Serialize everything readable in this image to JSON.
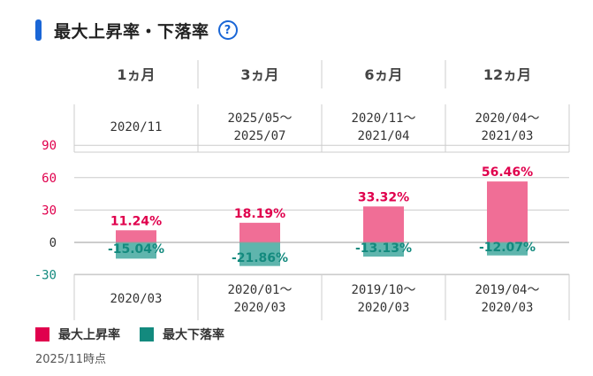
{
  "header": {
    "title": "最大上昇率・下落率",
    "help_glyph": "?",
    "help_icon": "question-circle-icon",
    "accent": "#1a66d6"
  },
  "periods": [
    "1ヵ月",
    "3ヵ月",
    "6ヵ月",
    "12ヵ月"
  ],
  "up_dates": [
    [
      "2020/11"
    ],
    [
      "2025/05〜",
      "2025/07"
    ],
    [
      "2020/11〜",
      "2021/04"
    ],
    [
      "2020/04〜",
      "2021/03"
    ]
  ],
  "down_dates": [
    [
      "2020/03"
    ],
    [
      "2020/01〜",
      "2020/03"
    ],
    [
      "2019/10〜",
      "2020/03"
    ],
    [
      "2019/04〜",
      "2020/03"
    ]
  ],
  "legend": {
    "up": "最大上昇率",
    "down": "最大下落率"
  },
  "footnote": "2025/11時点",
  "colors": {
    "up_bar": "#f06e96",
    "up_label": "#e0004d",
    "down_bar": "#5fb5ad",
    "down_label": "#138a7e",
    "grid": "#cccccc"
  },
  "chart_data": {
    "type": "bar",
    "categories": [
      "1ヵ月",
      "3ヵ月",
      "6ヵ月",
      "12ヵ月"
    ],
    "series": [
      {
        "name": "最大上昇率",
        "values": [
          11.24,
          18.19,
          33.32,
          56.46
        ],
        "labels": [
          "11.24%",
          "18.19%",
          "33.32%",
          "56.46%"
        ]
      },
      {
        "name": "最大下落率",
        "values": [
          -15.04,
          -21.86,
          -13.13,
          -12.07
        ],
        "labels": [
          "-15.04%",
          "-21.86%",
          "-13.13%",
          "-12.07%"
        ]
      }
    ],
    "yticks": [
      90,
      60,
      30,
      0,
      -30
    ],
    "ylim": [
      -30,
      90
    ],
    "grid": true,
    "legend_position": "bottom-left"
  }
}
